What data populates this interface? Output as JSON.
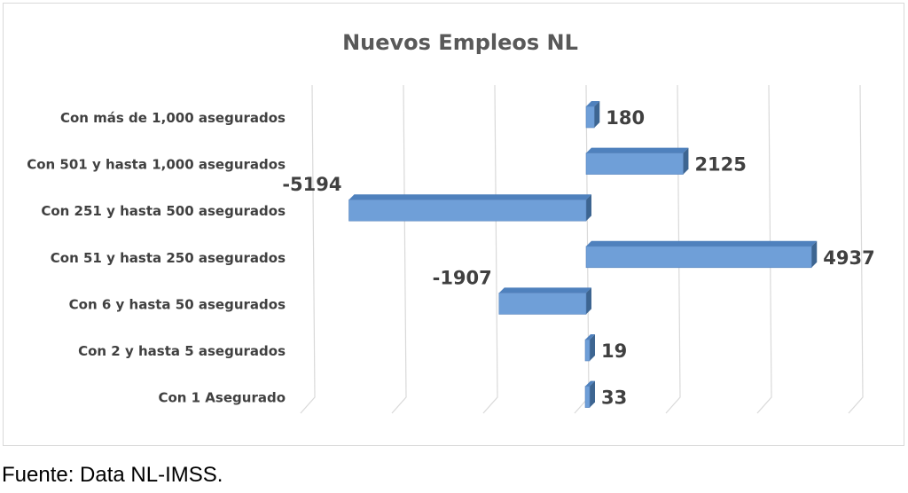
{
  "chart_data": {
    "type": "bar",
    "orientation": "horizontal",
    "title": "Nuevos Empleos NL",
    "categories": [
      "Con más de 1,000 asegurados",
      "Con 501 y hasta 1,000 asegurados",
      "Con 251 y hasta 500 asegurados",
      "Con 51 y hasta 250 asegurados",
      "Con 6 y hasta 50 asegurados",
      "Con 2 y hasta 5 asegurados",
      "Con 1 Asegurado"
    ],
    "values": [
      180,
      2125,
      -5194,
      4937,
      -1907,
      19,
      33
    ],
    "xlim": [
      -6000,
      6000
    ],
    "grid": true,
    "legend": "none",
    "colors": {
      "bar_front": "#6f9fd8",
      "bar_top": "#4f81bd",
      "bar_side": "#3d6591",
      "grid": "#d9d9d9"
    }
  },
  "source": "Fuente: Data NL-IMSS."
}
